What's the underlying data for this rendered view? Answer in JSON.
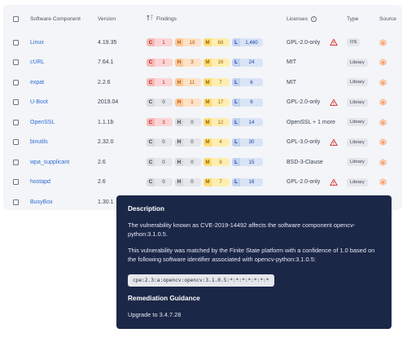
{
  "header": {
    "component": "Software Component",
    "version": "Version",
    "findings": "Findings",
    "licenses": "Licenses",
    "type": "Type",
    "source": "Source"
  },
  "rows": [
    {
      "name": "Linux",
      "version": "4.19.35",
      "c": "1",
      "h": "18",
      "m": "68",
      "l": "1,460",
      "license": "GPL-2.0-only",
      "warn": true,
      "type": "OS"
    },
    {
      "name": "cURL",
      "version": "7.64.1",
      "c": "1",
      "h": "3",
      "m": "16",
      "l": "24",
      "license": "MIT",
      "warn": false,
      "type": "Library"
    },
    {
      "name": "expat",
      "version": "2.2.6",
      "c": "1",
      "h": "11",
      "m": "7",
      "l": "6",
      "license": "MIT",
      "warn": false,
      "type": "Library"
    },
    {
      "name": "U-Boot",
      "version": "2019.04",
      "c": "0",
      "h": "1",
      "m": "17",
      "l": "6",
      "license": "GPL-2.0-only",
      "warn": true,
      "type": "Library"
    },
    {
      "name": "OpenSSL",
      "version": "1.1.1b",
      "c": "3",
      "h": "0",
      "m": "12",
      "l": "14",
      "license": "OpenSSL + 1 more",
      "warn": false,
      "type": "Library"
    },
    {
      "name": "binutils",
      "version": "2.32.0",
      "c": "0",
      "h": "0",
      "m": "4",
      "l": "30",
      "license": "GPL-3.0-only",
      "warn": true,
      "type": "Library"
    },
    {
      "name": "wpa_supplicant",
      "version": "2.6",
      "c": "0",
      "h": "0",
      "m": "8",
      "l": "15",
      "license": "BSD-3-Clause",
      "warn": false,
      "type": "Library"
    },
    {
      "name": "hostapd",
      "version": "2.6",
      "c": "0",
      "h": "0",
      "m": "7",
      "l": "16",
      "license": "GPL-2.0-only",
      "warn": true,
      "type": "Library"
    },
    {
      "name": "BusyBox",
      "version": "1.30.1",
      "c": "",
      "h": "",
      "m": "",
      "l": "",
      "license": "",
      "warn": false,
      "type": ""
    }
  ],
  "letters": {
    "c": "C",
    "h": "H",
    "m": "M",
    "l": "L"
  },
  "tooltip": {
    "description_heading": "Description",
    "description_text": "The vulnerability known as CVE-2019-14492 affects the software component opencv-python:3.1.0.5.",
    "match_text": "This vulnerability was matched by the Finite State platform with a confidence of 1.0 based on the following software identifier associated with opencv-python:3.1.0.5:",
    "identifier": "cpe:2.3:a:opencv:opencv:3.1.0.5:*:*:*:*:*:*:*",
    "remediation_heading": "Remediation Guidance",
    "remediation_text": "Upgrade to 3.4.7.28"
  },
  "colors": {
    "link": "#2f6bd4",
    "tooltip_bg": "#1b2747",
    "warning": "#dc2626",
    "source_icon": "#f59e6b"
  },
  "icons": {
    "sort": "sort-icon",
    "info": "info-icon",
    "warning": "warning-icon",
    "source": "source-package-icon"
  }
}
